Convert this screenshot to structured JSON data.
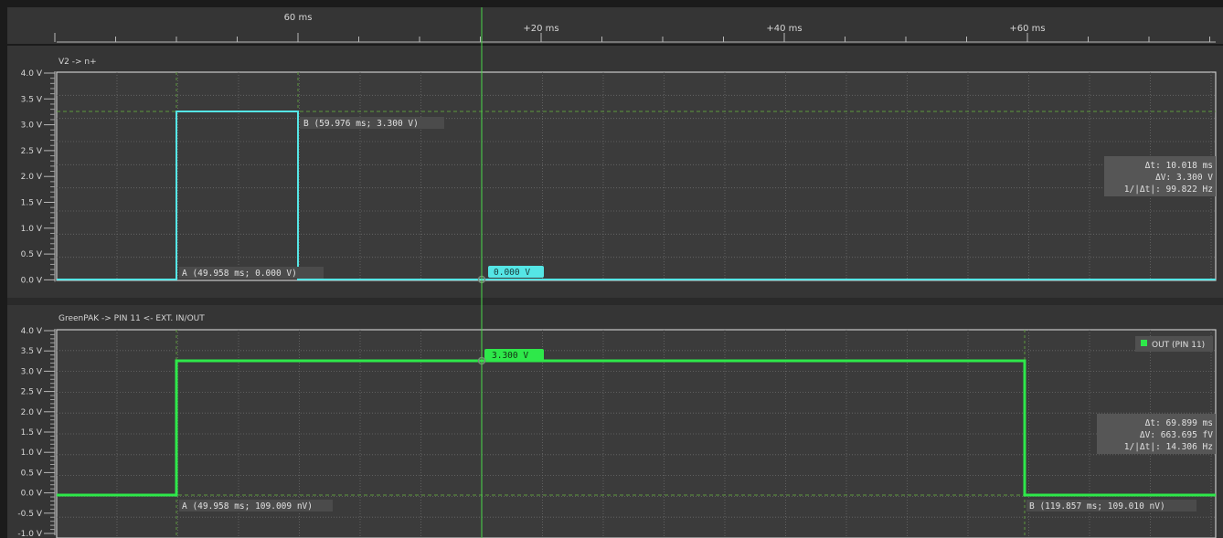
{
  "time_axis": {
    "labels": [
      "60 ms",
      "+20 ms",
      "+40 ms",
      "+60 ms"
    ]
  },
  "colors": {
    "background": "#1b1b1b",
    "panel": "#353535",
    "plot_border": "#c8c8c8",
    "grid": "#6a6a6a",
    "cyan_trace": "#55e6e6",
    "green_trace": "#2ee84a",
    "cursor_line": "#49d849",
    "label_box": "#4b4b4b",
    "readout_box": "#565656",
    "text": "#d6d6d6"
  },
  "top_panel": {
    "title": "V2 -> n+",
    "y_ticks": [
      "4.0 V",
      "3.5 V",
      "3.0 V",
      "2.5 V",
      "2.0 V",
      "1.5 V",
      "1.0 V",
      "0.5 V",
      "0.0 V"
    ],
    "marker_a": "A (49.958 ms; 0.000 V)",
    "marker_b": "B (59.976 ms; 3.300 V)",
    "cursor_value": "0.000 V",
    "readout": {
      "dt": "Δt:  10.018 ms",
      "dv": "ΔV:   3.300  V",
      "freq": "1/|Δt|:  99.822 Hz"
    }
  },
  "bottom_panel": {
    "title": "GreenPAK -> PIN 11 <- EXT. IN/OUT",
    "y_ticks": [
      "4.0 V",
      "3.5 V",
      "3.0 V",
      "2.5 V",
      "2.0 V",
      "1.5 V",
      "1.0 V",
      "0.5 V",
      "0.0 V",
      "-0.5 V",
      "-1.0 V"
    ],
    "marker_a": "A (49.958 ms; 109.009 nV)",
    "marker_b": "B (119.857 ms; 109.010 nV)",
    "cursor_value": "3.300 V",
    "legend": "OUT (PIN 11)",
    "readout": {
      "dt": "Δt:  69.899 ms",
      "dv": "ΔV: 663.695 fV",
      "freq": "1/|Δt|:  14.306 Hz"
    }
  }
}
